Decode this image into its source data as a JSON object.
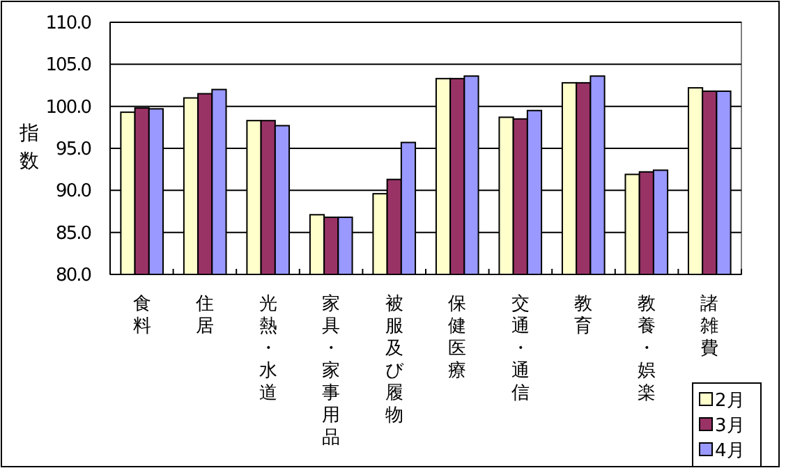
{
  "chart_data": {
    "type": "bar",
    "ylabel": "指数",
    "categories": [
      "食料",
      "住居",
      "光熱・水道",
      "家具・家事用品",
      "被服及び履物",
      "保健医療",
      "交通・通信",
      "教育",
      "教養・娯楽",
      "諸雑費"
    ],
    "series": [
      {
        "name": "2月",
        "color": "#ffffcc",
        "values": [
          99.3,
          101.0,
          98.3,
          87.1,
          89.6,
          103.3,
          98.7,
          102.8,
          91.9,
          102.2
        ]
      },
      {
        "name": "3月",
        "color": "#993366",
        "values": [
          99.8,
          101.5,
          98.3,
          86.8,
          91.3,
          103.3,
          98.5,
          102.8,
          92.2,
          101.8
        ]
      },
      {
        "name": "4月",
        "color": "#9999ff",
        "values": [
          99.7,
          102.0,
          97.7,
          86.8,
          95.7,
          103.6,
          99.5,
          103.6,
          92.4,
          101.8
        ]
      }
    ],
    "ylim": [
      80,
      110
    ],
    "yticks": [
      {
        "value": 80,
        "label": "80.0"
      },
      {
        "value": 85,
        "label": "85.0"
      },
      {
        "value": 90,
        "label": "90.0"
      },
      {
        "value": 95,
        "label": "95.0"
      },
      {
        "value": 100,
        "label": "100.0"
      },
      {
        "value": 105,
        "label": "105.0"
      },
      {
        "value": 110,
        "label": "110.0"
      }
    ],
    "grid": "y",
    "legend": "bottom right"
  }
}
